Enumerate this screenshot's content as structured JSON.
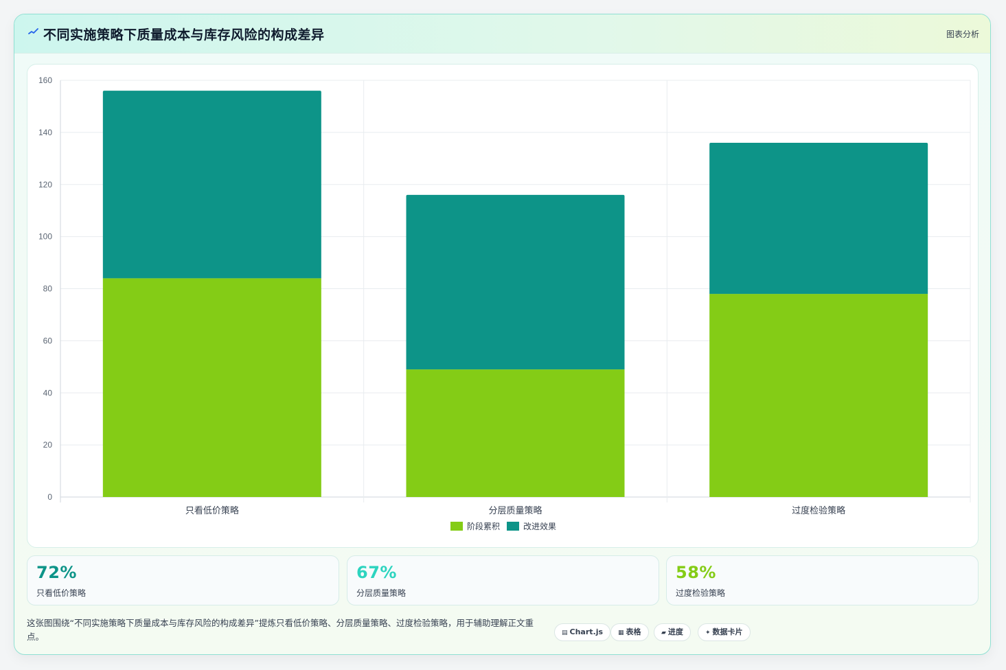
{
  "header": {
    "title": "不同实施策略下质量成本与库存风险的构成差异",
    "right_label": "图表分析",
    "icon": "sparkline-icon"
  },
  "chart_data": {
    "type": "bar",
    "stacked": true,
    "categories": [
      "只看低价策略",
      "分层质量策略",
      "过度检验策略"
    ],
    "series": [
      {
        "name": "阶段累积",
        "color": "#84cc16",
        "values": [
          84,
          49,
          78
        ]
      },
      {
        "name": "改进效果",
        "color": "#0d9488",
        "values": [
          72,
          67,
          58
        ]
      }
    ],
    "ylim": [
      0,
      160
    ],
    "yticks": [
      0,
      20,
      40,
      60,
      80,
      100,
      120,
      140,
      160
    ],
    "grid": true,
    "legend": "bottom"
  },
  "stats": [
    {
      "value": "72%",
      "label": "只看低价策略",
      "color": "#0d9488"
    },
    {
      "value": "67%",
      "label": "分层质量策略",
      "color": "#2dd4bf"
    },
    {
      "value": "58%",
      "label": "过度检验策略",
      "color": "#84cc16"
    }
  ],
  "footer": {
    "text": "这张图围绕“不同实施策略下质量成本与库存风险的构成差异”提炼只看低价策略、分层质量策略、过度检验策略，用于辅助理解正文重点。",
    "chips": [
      {
        "icon": "chart-icon",
        "glyph": "▤",
        "label": "Chart.js"
      },
      {
        "icon": "table-icon",
        "glyph": "▦",
        "label": "表格"
      },
      {
        "icon": "progress-icon",
        "glyph": "▰",
        "label": "进度"
      },
      {
        "icon": "sparkle-icon",
        "glyph": "✦",
        "label": "数据卡片"
      }
    ]
  }
}
